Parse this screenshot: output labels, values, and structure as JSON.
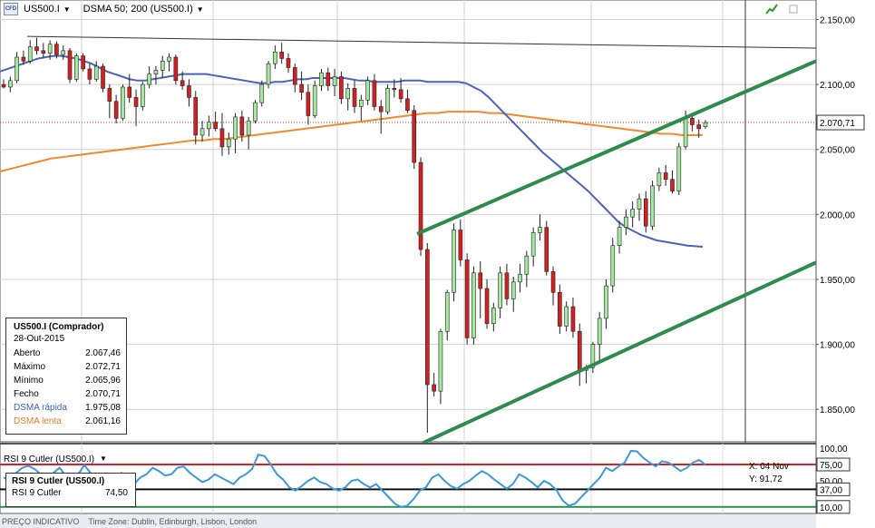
{
  "header": {
    "symbol": "US500.I",
    "indicator": "DSMA 50; 200 (US500.I)"
  },
  "infobox": {
    "title": "US500.I (Comprador)",
    "date": "28-Out-2015",
    "rows": [
      {
        "label": "Aberto",
        "value": "2.067,46",
        "color": "#000000"
      },
      {
        "label": "Máximo",
        "value": "2.072,71",
        "color": "#000000"
      },
      {
        "label": "Mínimo",
        "value": "2.065,96",
        "color": "#000000"
      },
      {
        "label": "Fecho",
        "value": "2.070,71",
        "color": "#000000"
      },
      {
        "label": "DSMA rápida",
        "value": "1.975,08",
        "color": "#3b5fb5"
      },
      {
        "label": "DSMA lenta",
        "value": "2.061,16",
        "color": "#e87a1e"
      }
    ]
  },
  "rsi": {
    "header": "RSI 9 Cutler (US500.I)",
    "box_title": "RSI 9 Cutler (US500.I)",
    "box_label": "RSI 9 Cutler",
    "box_value": "74,50",
    "xy_x": "X: 04 Nov",
    "xy_y": "Y: 91,72",
    "tick_labels": [
      "100,00",
      "75,00",
      "50,00",
      "37,00",
      "10,00"
    ],
    "levels": [
      75,
      37,
      10
    ]
  },
  "status_bar": {
    "left": "PREÇO INDICATIVO",
    "right": "Time Zone: Dublin, Edinburgh, Lisbon, London"
  },
  "price_axis": {
    "ticks": [
      "2.150,00",
      "2.100,00",
      "2.050,00",
      "2.000,00",
      "1.950,00",
      "1.900,00",
      "1.850,00"
    ],
    "tick_values": [
      2150,
      2100,
      2050,
      2000,
      1950,
      1900,
      1850
    ],
    "current_label": "2.070,71",
    "current_value": 2070.71
  },
  "colors": {
    "up": "#a6e8a0",
    "down": "#d42020",
    "fast_ma": "#4a64b8",
    "slow_ma": "#ef8a2e",
    "channel": "#2e8b4e",
    "rsi": "#3a9ad8",
    "level_red": "#e02020"
  },
  "chart_data": [
    {
      "type": "candlestick",
      "symbol": "US500.I",
      "ylim": [
        1825,
        2165
      ],
      "candles": [
        {
          "o": 2100,
          "h": 2104,
          "l": 2097,
          "c": 2098
        },
        {
          "o": 2098,
          "h": 2106,
          "l": 2094,
          "c": 2103
        },
        {
          "o": 2103,
          "h": 2125,
          "l": 2101,
          "c": 2121
        },
        {
          "o": 2121,
          "h": 2126,
          "l": 2115,
          "c": 2118
        },
        {
          "o": 2118,
          "h": 2134,
          "l": 2116,
          "c": 2129
        },
        {
          "o": 2129,
          "h": 2136,
          "l": 2123,
          "c": 2126
        },
        {
          "o": 2126,
          "h": 2132,
          "l": 2120,
          "c": 2124
        },
        {
          "o": 2124,
          "h": 2134,
          "l": 2119,
          "c": 2131
        },
        {
          "o": 2131,
          "h": 2133,
          "l": 2120,
          "c": 2123
        },
        {
          "o": 2123,
          "h": 2130,
          "l": 2119,
          "c": 2126
        },
        {
          "o": 2126,
          "h": 2128,
          "l": 2101,
          "c": 2104
        },
        {
          "o": 2104,
          "h": 2124,
          "l": 2102,
          "c": 2122
        },
        {
          "o": 2122,
          "h": 2124,
          "l": 2110,
          "c": 2112
        },
        {
          "o": 2112,
          "h": 2116,
          "l": 2100,
          "c": 2104
        },
        {
          "o": 2104,
          "h": 2118,
          "l": 2102,
          "c": 2114
        },
        {
          "o": 2114,
          "h": 2116,
          "l": 2094,
          "c": 2097
        },
        {
          "o": 2097,
          "h": 2100,
          "l": 2074,
          "c": 2087
        },
        {
          "o": 2087,
          "h": 2092,
          "l": 2070,
          "c": 2074
        },
        {
          "o": 2074,
          "h": 2100,
          "l": 2072,
          "c": 2098
        },
        {
          "o": 2098,
          "h": 2108,
          "l": 2086,
          "c": 2090
        },
        {
          "o": 2090,
          "h": 2096,
          "l": 2068,
          "c": 2083
        },
        {
          "o": 2083,
          "h": 2102,
          "l": 2080,
          "c": 2100
        },
        {
          "o": 2100,
          "h": 2114,
          "l": 2097,
          "c": 2108
        },
        {
          "o": 2108,
          "h": 2114,
          "l": 2100,
          "c": 2111
        },
        {
          "o": 2111,
          "h": 2122,
          "l": 2105,
          "c": 2118
        },
        {
          "o": 2118,
          "h": 2124,
          "l": 2110,
          "c": 2121
        },
        {
          "o": 2121,
          "h": 2123,
          "l": 2100,
          "c": 2103
        },
        {
          "o": 2103,
          "h": 2110,
          "l": 2096,
          "c": 2099
        },
        {
          "o": 2099,
          "h": 2104,
          "l": 2083,
          "c": 2090
        },
        {
          "o": 2090,
          "h": 2095,
          "l": 2054,
          "c": 2061
        },
        {
          "o": 2061,
          "h": 2072,
          "l": 2056,
          "c": 2066
        },
        {
          "o": 2066,
          "h": 2076,
          "l": 2060,
          "c": 2071
        },
        {
          "o": 2071,
          "h": 2079,
          "l": 2064,
          "c": 2066
        },
        {
          "o": 2066,
          "h": 2078,
          "l": 2045,
          "c": 2052
        },
        {
          "o": 2052,
          "h": 2063,
          "l": 2046,
          "c": 2058
        },
        {
          "o": 2058,
          "h": 2078,
          "l": 2047,
          "c": 2075
        },
        {
          "o": 2075,
          "h": 2080,
          "l": 2056,
          "c": 2061
        },
        {
          "o": 2061,
          "h": 2075,
          "l": 2050,
          "c": 2072
        },
        {
          "o": 2072,
          "h": 2088,
          "l": 2070,
          "c": 2086
        },
        {
          "o": 2086,
          "h": 2103,
          "l": 2083,
          "c": 2100
        },
        {
          "o": 2100,
          "h": 2118,
          "l": 2097,
          "c": 2116
        },
        {
          "o": 2116,
          "h": 2130,
          "l": 2112,
          "c": 2125
        },
        {
          "o": 2125,
          "h": 2132,
          "l": 2116,
          "c": 2120
        },
        {
          "o": 2120,
          "h": 2124,
          "l": 2109,
          "c": 2113
        },
        {
          "o": 2113,
          "h": 2116,
          "l": 2094,
          "c": 2100
        },
        {
          "o": 2100,
          "h": 2110,
          "l": 2088,
          "c": 2094
        },
        {
          "o": 2094,
          "h": 2100,
          "l": 2069,
          "c": 2076
        },
        {
          "o": 2076,
          "h": 2103,
          "l": 2074,
          "c": 2099
        },
        {
          "o": 2099,
          "h": 2112,
          "l": 2095,
          "c": 2109
        },
        {
          "o": 2109,
          "h": 2113,
          "l": 2095,
          "c": 2099
        },
        {
          "o": 2099,
          "h": 2112,
          "l": 2091,
          "c": 2106
        },
        {
          "o": 2106,
          "h": 2110,
          "l": 2085,
          "c": 2089
        },
        {
          "o": 2089,
          "h": 2101,
          "l": 2080,
          "c": 2097
        },
        {
          "o": 2097,
          "h": 2103,
          "l": 2078,
          "c": 2083
        },
        {
          "o": 2083,
          "h": 2092,
          "l": 2072,
          "c": 2088
        },
        {
          "o": 2088,
          "h": 2106,
          "l": 2084,
          "c": 2103
        },
        {
          "o": 2103,
          "h": 2108,
          "l": 2080,
          "c": 2083
        },
        {
          "o": 2083,
          "h": 2088,
          "l": 2062,
          "c": 2079
        },
        {
          "o": 2079,
          "h": 2100,
          "l": 2077,
          "c": 2097
        },
        {
          "o": 2097,
          "h": 2104,
          "l": 2090,
          "c": 2096
        },
        {
          "o": 2096,
          "h": 2105,
          "l": 2086,
          "c": 2089
        },
        {
          "o": 2089,
          "h": 2096,
          "l": 2078,
          "c": 2080
        },
        {
          "o": 2080,
          "h": 2084,
          "l": 2035,
          "c": 2040
        },
        {
          "o": 2040,
          "h": 2044,
          "l": 1968,
          "c": 1973
        },
        {
          "o": 1973,
          "h": 1978,
          "l": 1832,
          "c": 1869
        },
        {
          "o": 1869,
          "h": 1878,
          "l": 1860,
          "c": 1864
        },
        {
          "o": 1864,
          "h": 1912,
          "l": 1854,
          "c": 1910
        },
        {
          "o": 1910,
          "h": 1942,
          "l": 1903,
          "c": 1940
        },
        {
          "o": 1940,
          "h": 1993,
          "l": 1933,
          "c": 1988
        },
        {
          "o": 1988,
          "h": 1996,
          "l": 1960,
          "c": 1965
        },
        {
          "o": 1965,
          "h": 1970,
          "l": 1900,
          "c": 1905
        },
        {
          "o": 1905,
          "h": 1960,
          "l": 1900,
          "c": 1955
        },
        {
          "o": 1955,
          "h": 1964,
          "l": 1920,
          "c": 1943
        },
        {
          "o": 1943,
          "h": 1950,
          "l": 1912,
          "c": 1916
        },
        {
          "o": 1916,
          "h": 1932,
          "l": 1910,
          "c": 1928
        },
        {
          "o": 1928,
          "h": 1960,
          "l": 1920,
          "c": 1955
        },
        {
          "o": 1955,
          "h": 1962,
          "l": 1930,
          "c": 1935
        },
        {
          "o": 1935,
          "h": 1952,
          "l": 1925,
          "c": 1948
        },
        {
          "o": 1948,
          "h": 1962,
          "l": 1940,
          "c": 1954
        },
        {
          "o": 1954,
          "h": 1972,
          "l": 1944,
          "c": 1968
        },
        {
          "o": 1968,
          "h": 1990,
          "l": 1960,
          "c": 1986
        },
        {
          "o": 1986,
          "h": 2000,
          "l": 1980,
          "c": 1990
        },
        {
          "o": 1990,
          "h": 1995,
          "l": 1953,
          "c": 1956
        },
        {
          "o": 1956,
          "h": 1960,
          "l": 1930,
          "c": 1940
        },
        {
          "o": 1940,
          "h": 1946,
          "l": 1908,
          "c": 1914
        },
        {
          "o": 1914,
          "h": 1933,
          "l": 1910,
          "c": 1929
        },
        {
          "o": 1929,
          "h": 1936,
          "l": 1905,
          "c": 1910
        },
        {
          "o": 1910,
          "h": 1916,
          "l": 1868,
          "c": 1880
        },
        {
          "o": 1880,
          "h": 1884,
          "l": 1870,
          "c": 1882
        },
        {
          "o": 1882,
          "h": 1902,
          "l": 1878,
          "c": 1900
        },
        {
          "o": 1900,
          "h": 1925,
          "l": 1885,
          "c": 1920
        },
        {
          "o": 1920,
          "h": 1950,
          "l": 1912,
          "c": 1945
        },
        {
          "o": 1945,
          "h": 1982,
          "l": 1940,
          "c": 1976
        },
        {
          "o": 1976,
          "h": 1995,
          "l": 1970,
          "c": 1990
        },
        {
          "o": 1990,
          "h": 2004,
          "l": 1984,
          "c": 1998
        },
        {
          "o": 1998,
          "h": 2010,
          "l": 1990,
          "c": 2004
        },
        {
          "o": 2004,
          "h": 2016,
          "l": 1995,
          "c": 2012
        },
        {
          "o": 2012,
          "h": 2018,
          "l": 1986,
          "c": 1991
        },
        {
          "o": 1991,
          "h": 2026,
          "l": 1988,
          "c": 2022
        },
        {
          "o": 2022,
          "h": 2036,
          "l": 2018,
          "c": 2032
        },
        {
          "o": 2032,
          "h": 2038,
          "l": 2022,
          "c": 2027
        },
        {
          "o": 2027,
          "h": 2034,
          "l": 2016,
          "c": 2018
        },
        {
          "o": 2018,
          "h": 2055,
          "l": 2015,
          "c": 2052
        },
        {
          "o": 2052,
          "h": 2080,
          "l": 2050,
          "c": 2074
        },
        {
          "o": 2074,
          "h": 2076,
          "l": 2064,
          "c": 2069
        },
        {
          "o": 2069,
          "h": 2073,
          "l": 2059,
          "c": 2066
        },
        {
          "o": 2067.46,
          "h": 2072.71,
          "l": 2065.96,
          "c": 2070.71
        }
      ],
      "dsma_fast": [
        2110,
        2112,
        2114,
        2116,
        2118,
        2120,
        2121,
        2122,
        2122,
        2121,
        2120,
        2118,
        2116,
        2113,
        2110,
        2108,
        2106,
        2104,
        2103,
        2103,
        2104,
        2105,
        2106,
        2107,
        2108,
        2108,
        2108,
        2108,
        2107,
        2106,
        2105,
        2104,
        2103,
        2102,
        2101,
        2101,
        2102,
        2102,
        2103,
        2104,
        2104,
        2105,
        2105,
        2105,
        2105,
        2105,
        2104,
        2103,
        2103,
        2102,
        2102,
        2102,
        2102,
        2103,
        2103,
        2103,
        2102,
        2102,
        2102,
        2102,
        2102,
        2101,
        2098,
        2095,
        2090,
        2084,
        2078,
        2072,
        2066,
        2060,
        2054,
        2048,
        2043,
        2038,
        2033,
        2028,
        2023,
        2018,
        2012,
        2006,
        2000,
        1994,
        1990,
        1987,
        1984,
        1982,
        1980,
        1979,
        1978,
        1977,
        1976,
        1975.5,
        1975.08
      ],
      "dsma_slow": [
        2033,
        2035,
        2037,
        2039,
        2041,
        2043,
        2044,
        2045,
        2046,
        2047,
        2048,
        2049,
        2050,
        2051,
        2052,
        2053,
        2054,
        2055,
        2056,
        2057,
        2057,
        2058,
        2058,
        2059,
        2060,
        2061,
        2062,
        2063,
        2064,
        2065,
        2066,
        2067,
        2068,
        2069,
        2070,
        2071,
        2072,
        2073,
        2074,
        2075,
        2076,
        2077,
        2078,
        2078,
        2079,
        2079,
        2079,
        2079,
        2078,
        2078,
        2077,
        2076,
        2075,
        2074,
        2073,
        2072,
        2071,
        2070,
        2069,
        2068,
        2067,
        2066,
        2065,
        2064,
        2063,
        2062,
        2062,
        2061,
        2061,
        2061.16
      ],
      "channel_upper": {
        "from": 1985,
        "to": 2118
      },
      "channel_lower": {
        "from": 1824,
        "to": 1963
      }
    },
    {
      "type": "line",
      "name": "RSI 9 Cutler",
      "ylim": [
        0,
        100
      ],
      "values": [
        55,
        50,
        62,
        70,
        73,
        68,
        60,
        55,
        62,
        70,
        58,
        52,
        60,
        74,
        62,
        50,
        42,
        40,
        55,
        62,
        50,
        45,
        55,
        60,
        70,
        65,
        58,
        60,
        70,
        72,
        62,
        55,
        48,
        52,
        60,
        55,
        50,
        45,
        55,
        60,
        68,
        90,
        88,
        75,
        60,
        52,
        40,
        35,
        42,
        50,
        55,
        48,
        45,
        38,
        35,
        40,
        50,
        52,
        45,
        40,
        45,
        35,
        25,
        15,
        10,
        12,
        22,
        35,
        40,
        55,
        60,
        50,
        42,
        38,
        45,
        50,
        58,
        65,
        60,
        52,
        45,
        38,
        45,
        60,
        55,
        48,
        40,
        50,
        45,
        36,
        20,
        12,
        15,
        25,
        35,
        45,
        55,
        70,
        65,
        72,
        78,
        96,
        95,
        85,
        78,
        72,
        80,
        78,
        72,
        65,
        70,
        78,
        82,
        74.5
      ]
    }
  ]
}
